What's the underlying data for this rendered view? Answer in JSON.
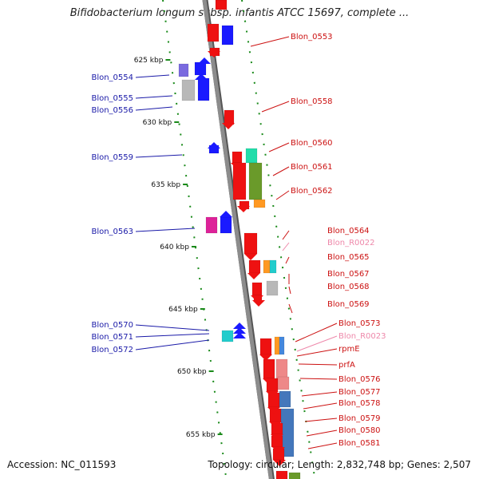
{
  "title": "Bifidobacterium longum subsp. infantis ATCC 15697, complete ...",
  "footer": {
    "accession": "Accession: NC_011593",
    "summary": "Topology: circular; Length: 2,832,748 bp; Genes: 2,507"
  },
  "colors": {
    "backbone": "#8c8c8c",
    "tick": "#1a8a1a",
    "left_label": "#1a1aa8",
    "right_label": "#cc1111",
    "rna_label": "#ee88aa",
    "forward_gene": "#ee1111"
  },
  "kbp_ticks": [
    "625 kbp",
    "630 kbp",
    "635 kbp",
    "640 kbp",
    "645 kbp",
    "650 kbp",
    "655 kbp"
  ],
  "left_genes": [
    {
      "label": "Blon_0554",
      "color": "#1a1aa8"
    },
    {
      "label": "Blon_0555",
      "color": "#1a1aa8"
    },
    {
      "label": "Blon_0556",
      "color": "#1a1aa8"
    },
    {
      "label": "Blon_0559",
      "color": "#1a1aa8"
    },
    {
      "label": "Blon_0563",
      "color": "#1a1aa8"
    },
    {
      "label": "Blon_0570",
      "color": "#1a1aa8"
    },
    {
      "label": "Blon_0571",
      "color": "#1a1aa8"
    },
    {
      "label": "Blon_0572",
      "color": "#1a1aa8"
    }
  ],
  "right_genes": [
    {
      "label": "Blon_0553",
      "color": "#cc1111"
    },
    {
      "label": "Blon_0558",
      "color": "#cc1111"
    },
    {
      "label": "Blon_0560",
      "color": "#cc1111"
    },
    {
      "label": "Blon_0561",
      "color": "#cc1111"
    },
    {
      "label": "Blon_0562",
      "color": "#cc1111"
    },
    {
      "label": "Blon_0564",
      "color": "#cc1111"
    },
    {
      "label": "Blon_R0022",
      "color": "#ee88aa"
    },
    {
      "label": "Blon_0565",
      "color": "#cc1111"
    },
    {
      "label": "Blon_0567",
      "color": "#cc1111"
    },
    {
      "label": "Blon_0568",
      "color": "#cc1111"
    },
    {
      "label": "Blon_0569",
      "color": "#cc1111"
    },
    {
      "label": "Blon_0573",
      "color": "#cc1111"
    },
    {
      "label": "Blon_R0023",
      "color": "#ee88aa"
    },
    {
      "label": "rpmE",
      "color": "#cc1111"
    },
    {
      "label": "prfA",
      "color": "#cc1111"
    },
    {
      "label": "Blon_0576",
      "color": "#cc1111"
    },
    {
      "label": "Blon_0577",
      "color": "#cc1111"
    },
    {
      "label": "Blon_0578",
      "color": "#cc1111"
    },
    {
      "label": "Blon_0579",
      "color": "#cc1111"
    },
    {
      "label": "Blon_0580",
      "color": "#cc1111"
    },
    {
      "label": "Blon_0581",
      "color": "#cc1111"
    }
  ]
}
